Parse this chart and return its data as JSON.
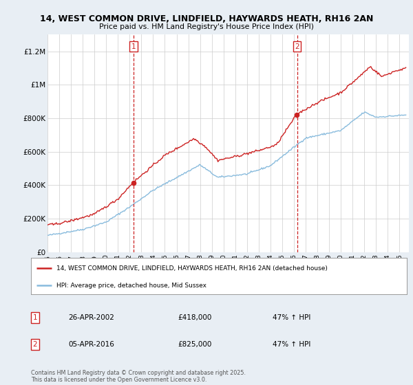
{
  "title1": "14, WEST COMMON DRIVE, LINDFIELD, HAYWARDS HEATH, RH16 2AN",
  "title2": "Price paid vs. HM Land Registry's House Price Index (HPI)",
  "ylim": [
    0,
    1300000
  ],
  "yticks": [
    0,
    200000,
    400000,
    600000,
    800000,
    1000000,
    1200000
  ],
  "ytick_labels": [
    "£0",
    "£200K",
    "£400K",
    "£600K",
    "£800K",
    "£1M",
    "£1.2M"
  ],
  "bg_color": "#e8eef4",
  "plot_bg": "#ffffff",
  "line1_color": "#cc2222",
  "line2_color": "#88bbdd",
  "vline_color": "#cc2222",
  "t1_x": 2002.32,
  "t2_x": 2016.27,
  "t1_y": 418000,
  "t2_y": 825000,
  "legend_label1": "14, WEST COMMON DRIVE, LINDFIELD, HAYWARDS HEATH, RH16 2AN (detached house)",
  "legend_label2": "HPI: Average price, detached house, Mid Sussex",
  "t1_date": "26-APR-2002",
  "t2_date": "05-APR-2016",
  "t1_price": "£418,000",
  "t2_price": "£825,000",
  "t1_pct": "47% ↑ HPI",
  "t2_pct": "47% ↑ HPI",
  "copyright": "Contains HM Land Registry data © Crown copyright and database right 2025.\nThis data is licensed under the Open Government Licence v3.0.",
  "xmin": 1995.0,
  "xmax": 2025.8
}
